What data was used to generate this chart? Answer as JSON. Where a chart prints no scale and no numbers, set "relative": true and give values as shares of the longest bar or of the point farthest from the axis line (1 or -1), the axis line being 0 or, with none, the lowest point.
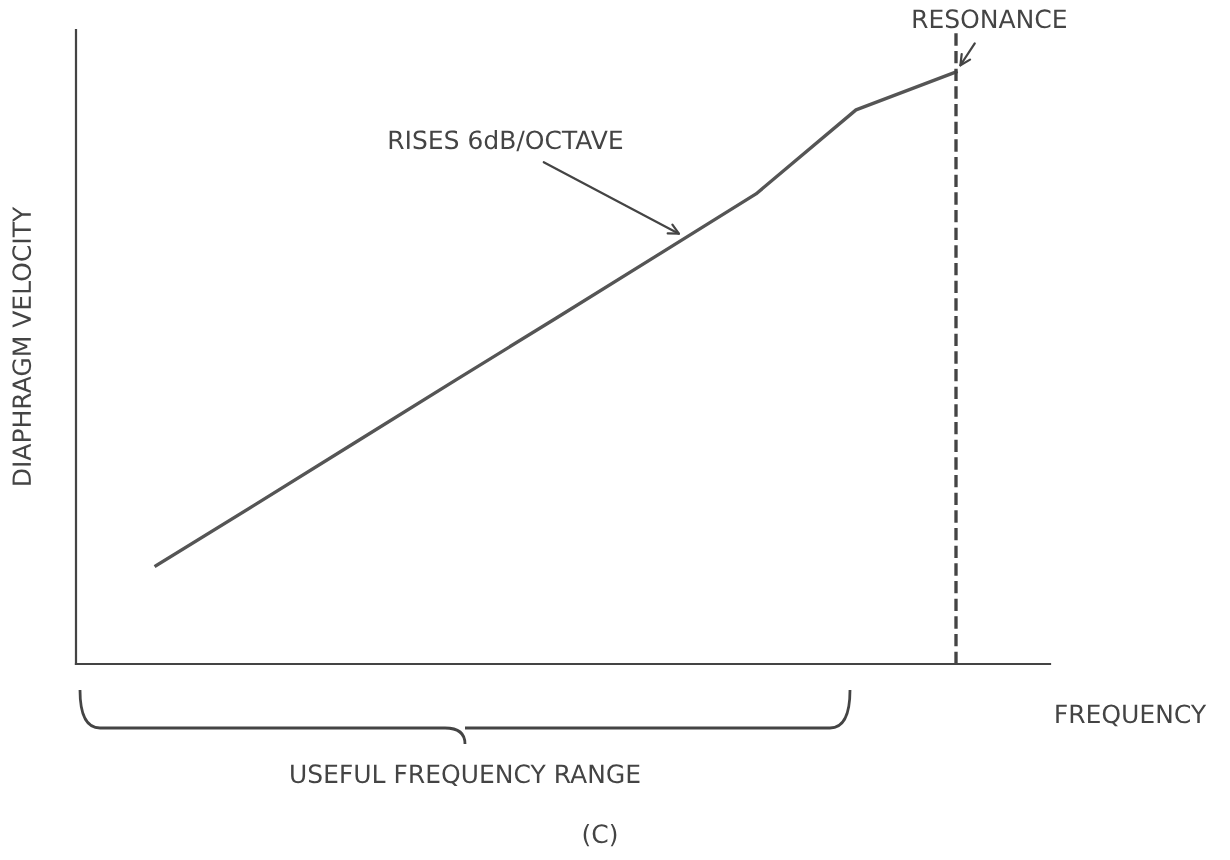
{
  "chart_data": {
    "type": "line",
    "relative": true,
    "xlabel": "FREQUENCY",
    "ylabel": "DIAPHRAGM VELOCITY",
    "categories": [
      null,
      null,
      null,
      null,
      null,
      null,
      null,
      null,
      null
    ],
    "series": [
      {
        "color": "#555555",
        "values": [
          0.166,
          0.27,
          0.375,
          0.48,
          0.584,
          0.689,
          0.794,
          0.936,
          1.0
        ]
      }
    ],
    "annotations": [
      "RISES 6dB/OCTAVE",
      "USEFUL FREQUENCY RANGE",
      "(C)",
      "RESONANCE"
    ],
    "grid": false,
    "legend": false,
    "marker": "none",
    "line_style": "solid"
  }
}
